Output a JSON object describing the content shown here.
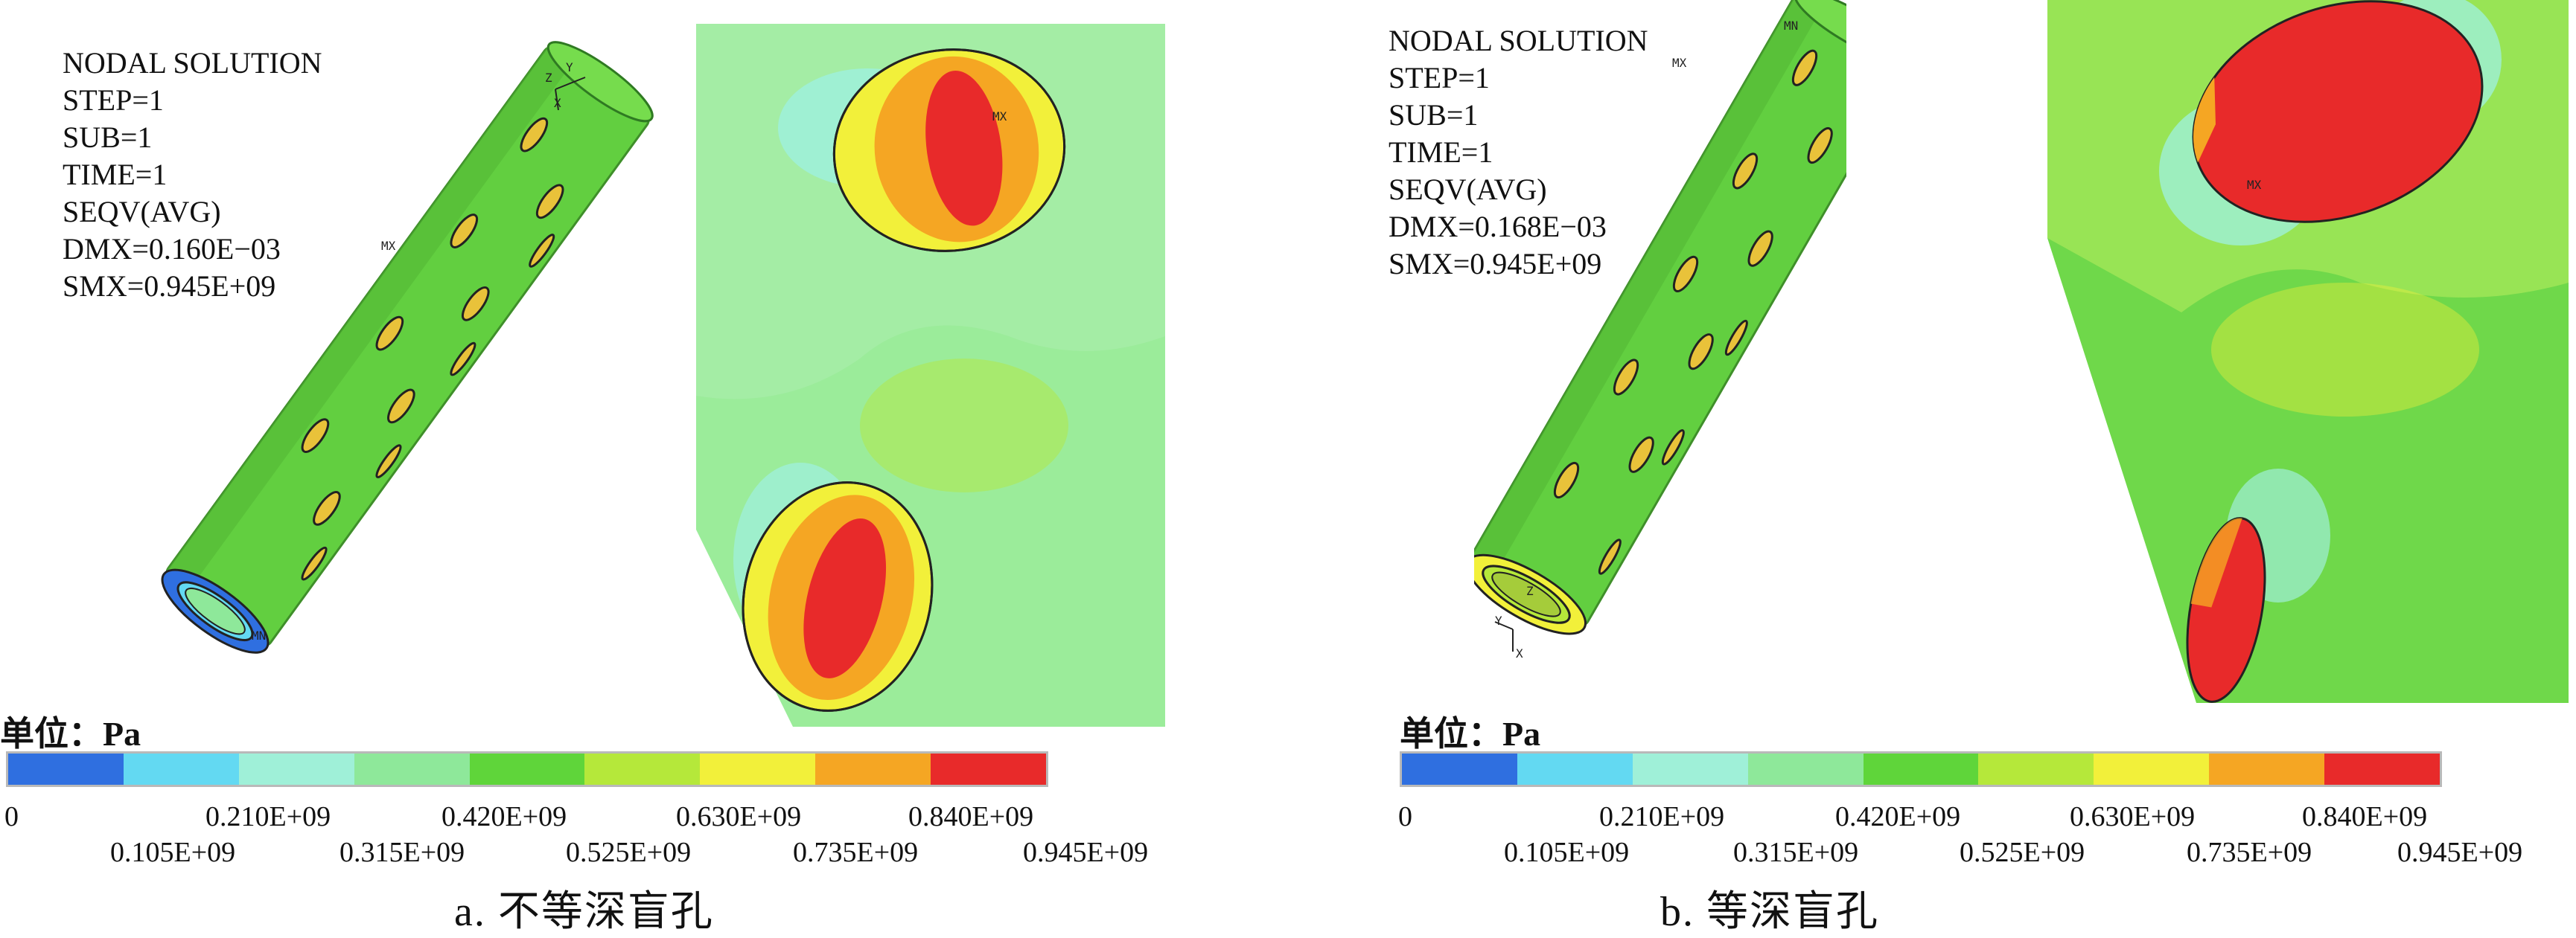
{
  "panels": [
    {
      "info": [
        "NODAL SOLUTION",
        "STEP=1",
        "SUB=1",
        "TIME=1",
        "SEQV(AVG)",
        "DMX=0.160E−03",
        "SMX=0.945E+09"
      ],
      "markers": {
        "mx": "MX",
        "mn": "MN",
        "axis_y": "Y",
        "axis_z": "Z",
        "axis_x": "X"
      },
      "unit": "单位：Pa",
      "caption": "a. 不等深盲孔"
    },
    {
      "info": [
        "NODAL SOLUTION",
        "STEP=1",
        "SUB=1",
        "TIME=1",
        "SEQV(AVG)",
        "DMX=0.168E−03",
        "SMX=0.945E+09"
      ],
      "markers": {
        "mx": "MX",
        "mn": "MN",
        "axis_y": "Y",
        "axis_z": "Z",
        "axis_x": "X"
      },
      "unit": "单位：Pa",
      "caption": "b. 等深盲孔"
    }
  ],
  "colorbar": {
    "colors": [
      "#2f6fe0",
      "#63d9f2",
      "#9ff0d8",
      "#8ee89a",
      "#5fd53a",
      "#b5e83a",
      "#f2f03a",
      "#f5a623",
      "#e82a2a"
    ],
    "ticks_top": [
      "0",
      "0.210E+09",
      "0.420E+09",
      "0.630E+09",
      "0.840E+09"
    ],
    "ticks_bottom": [
      "0.105E+09",
      "0.315E+09",
      "0.525E+09",
      "0.735E+09",
      "0.945E+09"
    ]
  }
}
